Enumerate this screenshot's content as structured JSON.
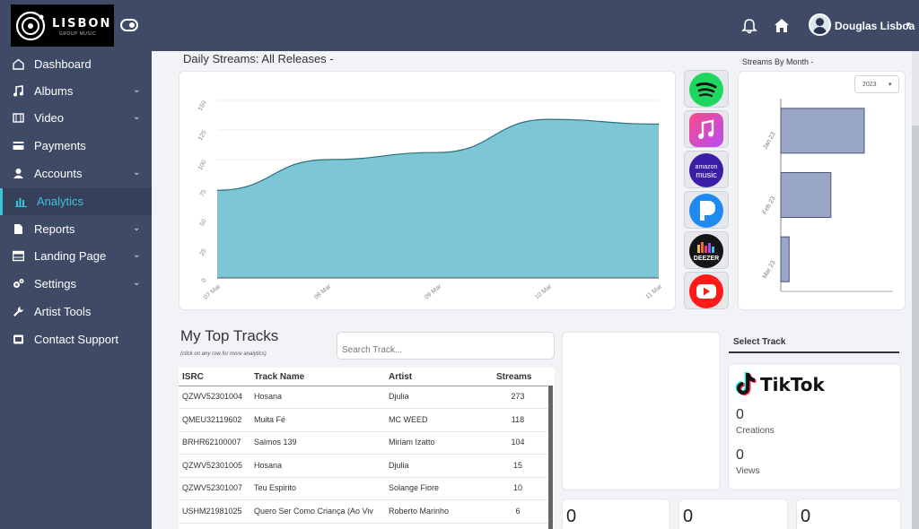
{
  "header": {
    "brand": "LISBON",
    "brand_sub": "GROUP MUSIC",
    "user_name": "Douglas Lisboa"
  },
  "sidebar": {
    "items": [
      {
        "label": "Dashboard",
        "icon": "home-icon",
        "chevron": false
      },
      {
        "label": "Albums",
        "icon": "music-note-icon",
        "chevron": true
      },
      {
        "label": "Video",
        "icon": "film-icon",
        "chevron": true
      },
      {
        "label": "Payments",
        "icon": "credit-card-icon",
        "chevron": false
      },
      {
        "label": "Accounts",
        "icon": "user-icon",
        "chevron": true
      },
      {
        "label": "Analytics",
        "icon": "bar-chart-icon",
        "chevron": false,
        "active": true
      },
      {
        "label": "Reports",
        "icon": "file-icon",
        "chevron": true
      },
      {
        "label": "Landing Page",
        "icon": "table-icon",
        "chevron": true
      },
      {
        "label": "Settings",
        "icon": "gears-icon",
        "chevron": true
      },
      {
        "label": "Artist Tools",
        "icon": "wrench-icon",
        "chevron": false
      },
      {
        "label": "Contact Support",
        "icon": "envelope-icon",
        "chevron": false
      }
    ]
  },
  "daily": {
    "title": "Daily Streams: All Releases -"
  },
  "platforms": [
    "spotify-icon",
    "apple-music-icon",
    "amazon-music-icon",
    "pandora-icon",
    "deezer-icon",
    "youtube-icon"
  ],
  "platform_labels": {
    "amazon": "amazon music",
    "deezer": "DEEZER"
  },
  "monthly": {
    "title": "Streams By Month -",
    "year": "2023"
  },
  "tracks": {
    "title": "My Top Tracks",
    "hint": "(click on any row for more analytics)",
    "search_placeholder": "Search Track...",
    "columns": [
      "ISRC",
      "Track Name",
      "Artist",
      "Streams"
    ],
    "rows": [
      [
        "QZWV52301004",
        "Hosana",
        "Djulia",
        "273"
      ],
      [
        "QMEU32119602",
        "Muita Fé",
        "MC WEED",
        "118"
      ],
      [
        "BRHR62100007",
        "Salmos 139",
        "Miriam Izatto",
        "104"
      ],
      [
        "QZWV52301005",
        "Hosana",
        "Djulia",
        "15"
      ],
      [
        "QZWV52301007",
        "Teu Espirito",
        "Solange Fiore",
        "10"
      ],
      [
        "USHM21981025",
        "Quero Ser Como Criança (Ao Viv",
        "Roberto Marinho",
        "6"
      ]
    ]
  },
  "select_track": {
    "title": "Select Track",
    "tiktok_brand": "TikTok",
    "creations_value": "0",
    "creations_label": "Creations",
    "views_value": "0",
    "views_label": "Views"
  },
  "bottom_cards": [
    "0",
    "0",
    "0"
  ],
  "chart_data": [
    {
      "type": "area",
      "x": [
        "07 Mar",
        "08 Mar",
        "09 Mar",
        "10 Mar",
        "11 Mar"
      ],
      "values": [
        74,
        100,
        106,
        134,
        130
      ],
      "yticks": [
        0,
        25,
        50,
        75,
        100,
        125,
        150
      ],
      "ylim": [
        0,
        150
      ],
      "color": "#7cc6d6"
    },
    {
      "type": "bar",
      "orientation": "horizontal",
      "categories": [
        "Jan 23",
        "Feb 23",
        "Mar 23"
      ],
      "values": [
        100,
        60,
        10
      ],
      "color": "#9aa6c6"
    }
  ]
}
